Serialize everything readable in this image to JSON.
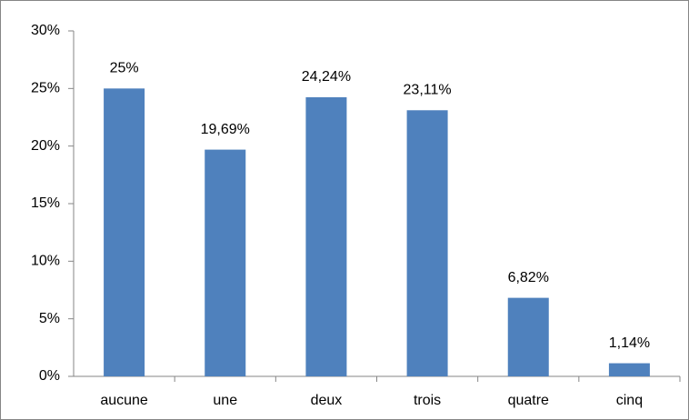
{
  "chart_data": {
    "type": "bar",
    "categories": [
      "aucune",
      "une",
      "deux",
      "trois",
      "quatre",
      "cinq"
    ],
    "values": [
      25,
      19.69,
      24.24,
      23.11,
      6.82,
      1.14
    ],
    "value_labels": [
      "25%",
      "19,69%",
      "24,24%",
      "23,11%",
      "6,82%",
      "1,14%"
    ],
    "color": "#4f81bd",
    "ylim": [
      0,
      30
    ],
    "yticks": [
      {
        "value": 0,
        "label": "0%"
      },
      {
        "value": 5,
        "label": "5%"
      },
      {
        "value": 10,
        "label": "10%"
      },
      {
        "value": 15,
        "label": "15%"
      },
      {
        "value": 20,
        "label": "20%"
      },
      {
        "value": 25,
        "label": "25%"
      },
      {
        "value": 30,
        "label": "30%"
      }
    ],
    "grid": false
  }
}
